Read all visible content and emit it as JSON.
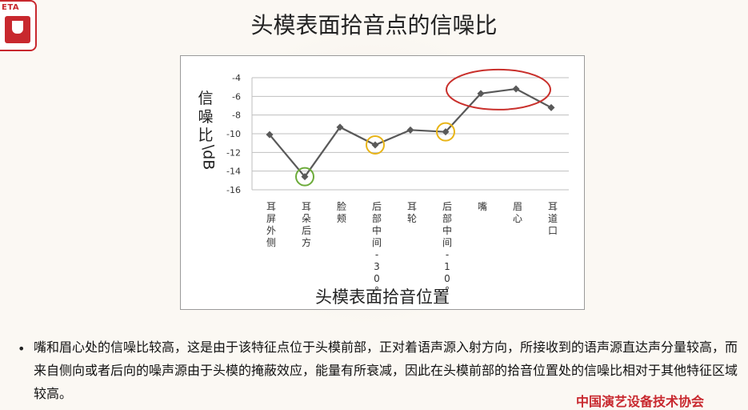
{
  "slide": {
    "title": "头模表面拾音点的信噪比",
    "logo_text": "ETA",
    "body": "嘴和眉心处的信噪比较高，这是由于该特征点位于头模前部，正对着语声源入射方向，所接收到的语声源直达声分量较高，而来自侧向或者后向的噪声源由于头模的掩蔽效应，能量有所衰减，因此在头模前部的拾音位置处的信噪比相对于其他特征区域较高。",
    "footer": "中国演艺设备技术协会"
  },
  "colors": {
    "line": "#595959",
    "grid": "#bfbfbf",
    "red_ring": "#c9302c",
    "yellow_ring": "#e8b417",
    "green_ring": "#6cab3a",
    "brand_red": "#c8282e"
  },
  "chart_data": {
    "type": "line",
    "xlabel": "头模表面拾音位置",
    "ylabel_main": "信噪比",
    "ylabel_unit": "\\dB",
    "categories": [
      "耳屏外侧",
      "耳朵后方",
      "脸颊",
      "后部中间-30°",
      "耳轮",
      "后部中间-10°",
      "嘴",
      "眉心",
      "耳道口"
    ],
    "values": [
      -10.1,
      -14.6,
      -9.3,
      -11.2,
      -9.6,
      -9.8,
      -5.7,
      -5.2,
      -7.2
    ],
    "ylim": [
      -16,
      -4
    ],
    "yticks": [
      -4,
      -6,
      -8,
      -10,
      -12,
      -14,
      -16
    ],
    "grid": true,
    "legend": "none",
    "highlights": [
      {
        "shape": "circle",
        "color": "green",
        "categories": [
          "耳朵后方"
        ]
      },
      {
        "shape": "circle",
        "color": "yellow",
        "categories": [
          "后部中间-30°"
        ]
      },
      {
        "shape": "circle",
        "color": "yellow",
        "categories": [
          "后部中间-10°"
        ]
      },
      {
        "shape": "ellipse",
        "color": "red",
        "categories": [
          "嘴",
          "眉心"
        ]
      }
    ]
  }
}
